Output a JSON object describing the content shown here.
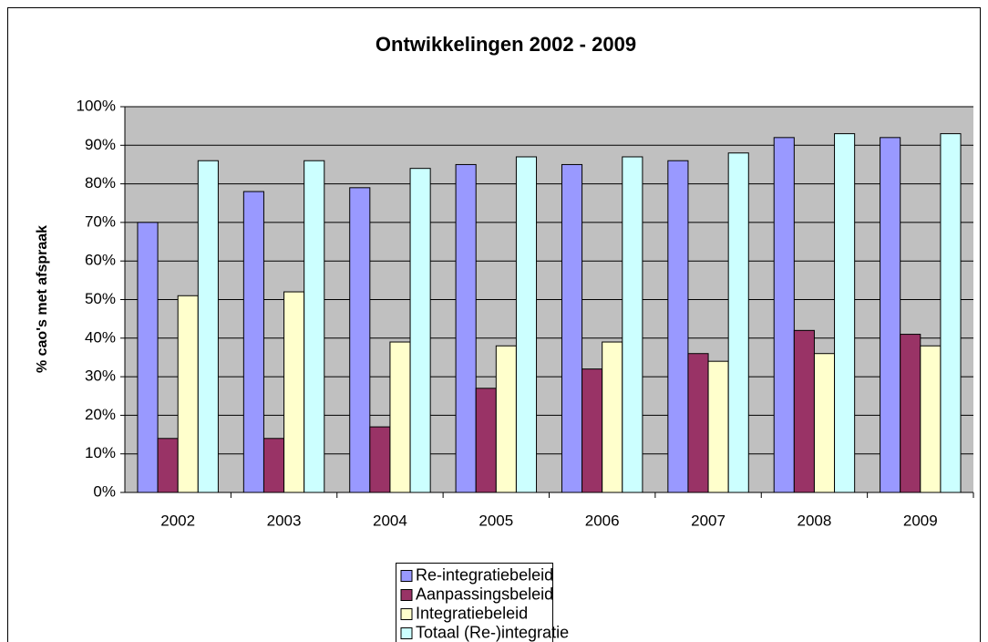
{
  "chart_data": {
    "type": "bar",
    "title": "Ontwikkelingen 2002 - 2009",
    "ylabel": "% cao's met afspraak",
    "categories": [
      "2002",
      "2003",
      "2004",
      "2005",
      "2006",
      "2007",
      "2008",
      "2009"
    ],
    "series": [
      {
        "name": "Re-integratiebeleid",
        "color": "#9999ff",
        "values": [
          70,
          78,
          79,
          85,
          85,
          86,
          92,
          92
        ]
      },
      {
        "name": "Aanpassingsbeleid",
        "color": "#993366",
        "values": [
          14,
          14,
          17,
          27,
          32,
          36,
          42,
          41
        ]
      },
      {
        "name": "Integratiebeleid",
        "color": "#ffffcc",
        "values": [
          51,
          52,
          39,
          38,
          39,
          34,
          36,
          38
        ]
      },
      {
        "name": "Totaal (Re-)integratie",
        "color": "#ccffff",
        "values": [
          86,
          86,
          84,
          87,
          87,
          88,
          93,
          93
        ]
      }
    ],
    "ylim": [
      0,
      100
    ],
    "yticks": [
      {
        "value": 0,
        "label": "0%"
      },
      {
        "value": 10,
        "label": "10%"
      },
      {
        "value": 20,
        "label": "20%"
      },
      {
        "value": 30,
        "label": "30%"
      },
      {
        "value": 40,
        "label": "40%"
      },
      {
        "value": 50,
        "label": "50%"
      },
      {
        "value": 60,
        "label": "60%"
      },
      {
        "value": 70,
        "label": "70%"
      },
      {
        "value": 80,
        "label": "80%"
      },
      {
        "value": 90,
        "label": "90%"
      },
      {
        "value": 100,
        "label": "100%"
      }
    ],
    "grid": true,
    "legend": "bottom"
  }
}
